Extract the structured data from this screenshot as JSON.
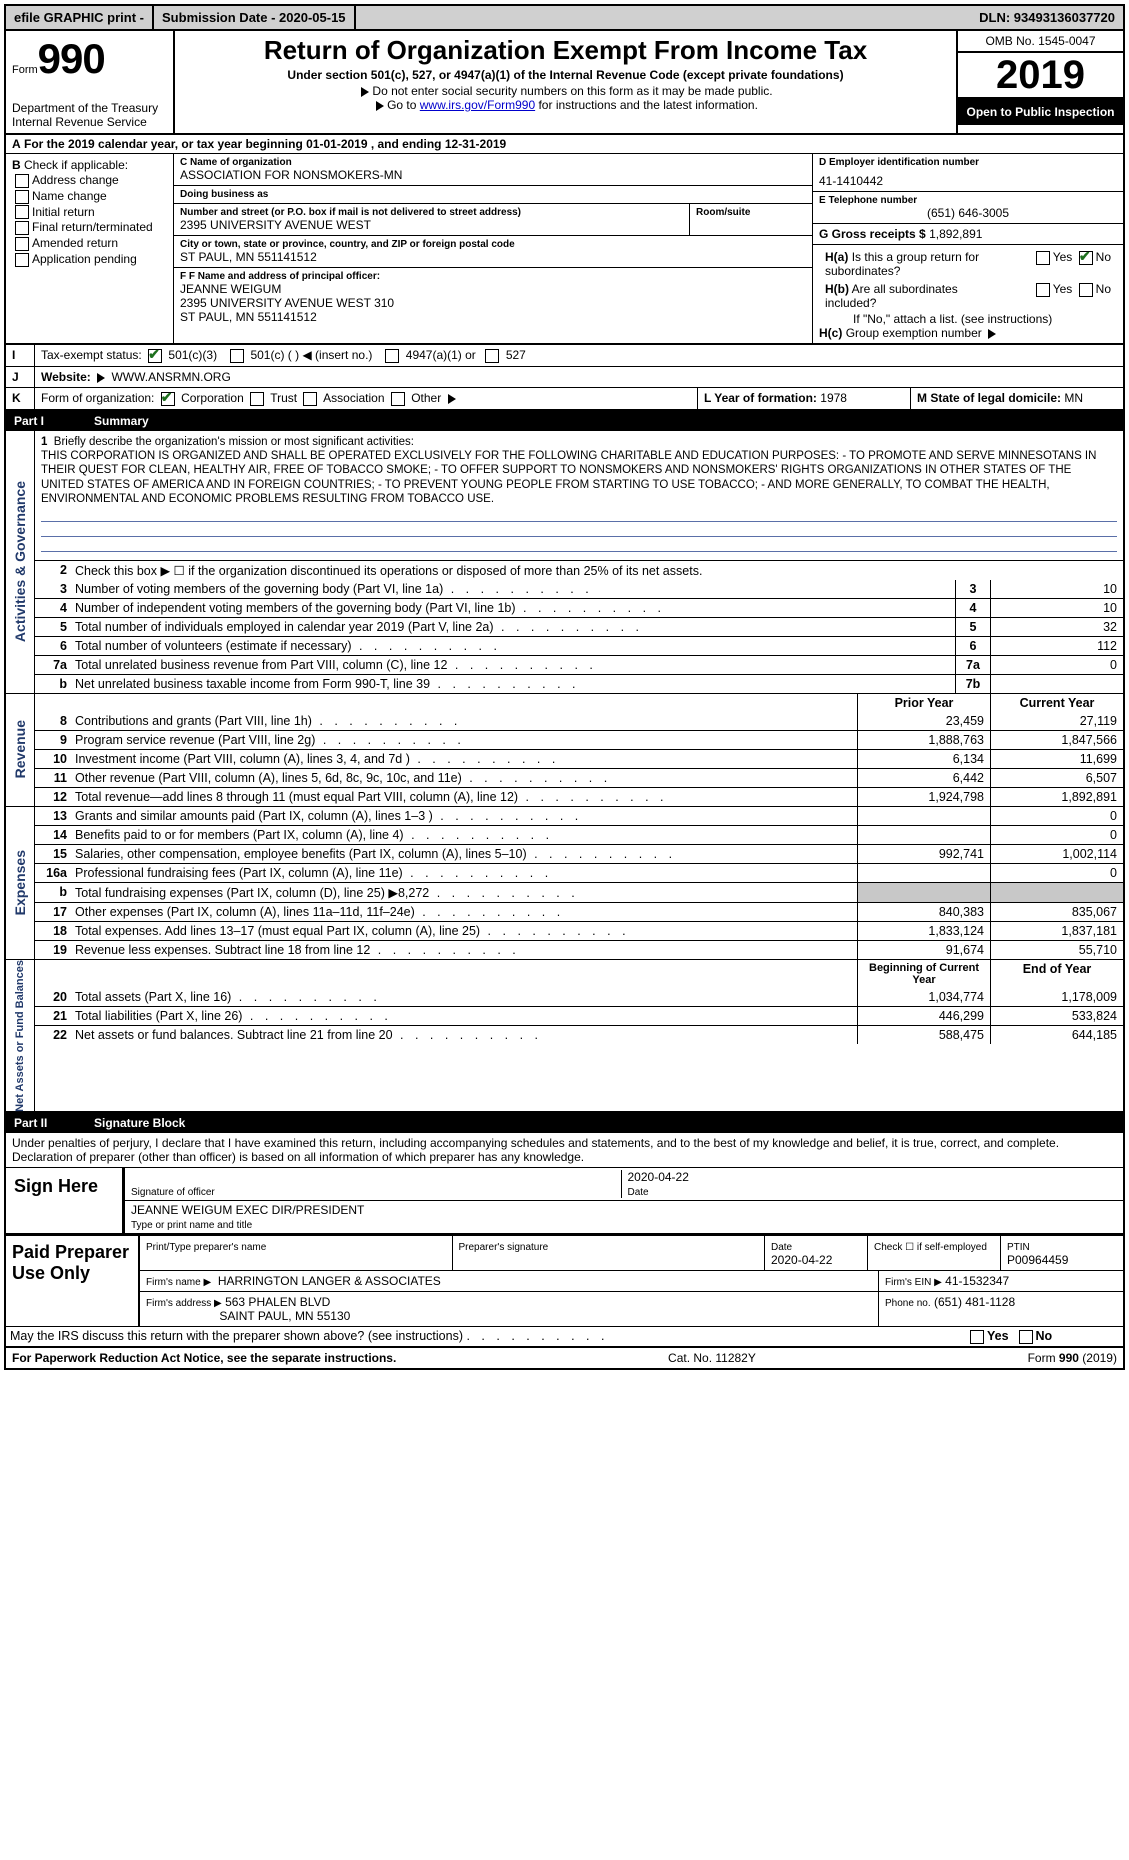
{
  "topbar": {
    "efile": "efile GRAPHIC print -",
    "submission": "Submission Date - 2020-05-15",
    "dln": "DLN: 93493136037720"
  },
  "header": {
    "form_word": "Form",
    "form_num": "990",
    "dept": "Department of the Treasury",
    "irs": "Internal Revenue Service",
    "title": "Return of Organization Exempt From Income Tax",
    "sub": "Under section 501(c), 527, or 4947(a)(1) of the Internal Revenue Code (except private foundations)",
    "note1": "Do not enter social security numbers on this form as it may be made public.",
    "note2_pre": "Go to ",
    "note2_url": "www.irs.gov/Form990",
    "note2_post": " for instructions and the latest information.",
    "omb": "OMB No. 1545-0047",
    "year": "2019",
    "inspect": "Open to Public Inspection"
  },
  "row_a": "For the 2019 calendar year, or tax year beginning 01-01-2019    , and ending 12-31-2019",
  "col_b": {
    "hdr": "Check if applicable:",
    "addr": "Address change",
    "name": "Name change",
    "init": "Initial return",
    "final": "Final return/terminated",
    "amend": "Amended return",
    "app": "Application pending"
  },
  "col_c": {
    "name_lbl": "C Name of organization",
    "name": "ASSOCIATION FOR NONSMOKERS-MN",
    "dba_lbl": "Doing business as",
    "dba": "",
    "street_lbl": "Number and street (or P.O. box if mail is not delivered to street address)",
    "street": "2395 UNIVERSITY AVENUE WEST",
    "room_lbl": "Room/suite",
    "city_lbl": "City or town, state or province, country, and ZIP or foreign postal code",
    "city": "ST PAUL, MN  551141512"
  },
  "col_d": {
    "ein_lbl": "D Employer identification number",
    "ein": "41-1410442",
    "tel_lbl": "E Telephone number",
    "tel": "(651) 646-3005",
    "gross_lbl": "G Gross receipts $",
    "gross": "1,892,891"
  },
  "col_f": {
    "lbl": "F Name and address of principal officer:",
    "name": "JEANNE WEIGUM",
    "addr1": "2395 UNIVERSITY AVENUE WEST 310",
    "addr2": "ST PAUL, MN   551141512"
  },
  "col_h": {
    "a": "Is this a group return for subordinates?",
    "b": "Are all subordinates included?",
    "b_note": "If \"No,\" attach a list. (see instructions)",
    "c": "Group exemption number",
    "yes": "Yes",
    "no": "No"
  },
  "line_i": {
    "lbl": "Tax-exempt status:",
    "o1": "501(c)(3)",
    "o2": "501(c) (   )",
    "o2_ins": "(insert no.)",
    "o3": "4947(a)(1) or",
    "o4": "527"
  },
  "line_j": {
    "lbl": "Website:",
    "val": "WWW.ANSRMN.ORG"
  },
  "line_k": {
    "lbl": "Form of organization:",
    "corp": "Corporation",
    "trust": "Trust",
    "assoc": "Association",
    "other": "Other",
    "l_lbl": "L Year of formation:",
    "l_val": "1978",
    "m_lbl": "M State of legal domicile:",
    "m_val": "MN"
  },
  "part1": {
    "num": "Part I",
    "title": "Summary"
  },
  "mission": {
    "lbl": "Briefly describe the organization's mission or most significant activities:",
    "txt": "THIS CORPORATION IS ORGANIZED AND SHALL BE OPERATED EXCLUSIVELY FOR THE FOLLOWING CHARITABLE AND EDUCATION PURPOSES: - TO PROMOTE AND SERVE MINNESOTANS IN THEIR QUEST FOR CLEAN, HEALTHY AIR, FREE OF TOBACCO SMOKE; - TO OFFER SUPPORT TO NONSMOKERS AND NONSMOKERS' RIGHTS ORGANIZATIONS IN OTHER STATES OF THE UNITED STATES OF AMERICA AND IN FOREIGN COUNTRIES; - TO PREVENT YOUNG PEOPLE FROM STARTING TO USE TOBACCO; - AND MORE GENERALLY, TO COMBAT THE HEALTH, ENVIRONMENTAL AND ECONOMIC PROBLEMS RESULTING FROM TOBACCO USE."
  },
  "gov": {
    "side": "Activities & Governance",
    "l2": "Check this box ▶ ☐  if the organization discontinued its operations or disposed of more than 25% of its net assets.",
    "rows": [
      {
        "n": "3",
        "t": "Number of voting members of the governing body (Part VI, line 1a)",
        "i": "3",
        "v": "10"
      },
      {
        "n": "4",
        "t": "Number of independent voting members of the governing body (Part VI, line 1b)",
        "i": "4",
        "v": "10"
      },
      {
        "n": "5",
        "t": "Total number of individuals employed in calendar year 2019 (Part V, line 2a)",
        "i": "5",
        "v": "32"
      },
      {
        "n": "6",
        "t": "Total number of volunteers (estimate if necessary)",
        "i": "6",
        "v": "112"
      },
      {
        "n": "7a",
        "t": "Total unrelated business revenue from Part VIII, column (C), line 12",
        "i": "7a",
        "v": "0"
      },
      {
        "n": "b",
        "t": "Net unrelated business taxable income from Form 990-T, line 39",
        "i": "7b",
        "v": ""
      }
    ]
  },
  "rev": {
    "side": "Revenue",
    "hdr1": "Prior Year",
    "hdr2": "Current Year",
    "rows": [
      {
        "n": "8",
        "t": "Contributions and grants (Part VIII, line 1h)",
        "p": "23,459",
        "c": "27,119"
      },
      {
        "n": "9",
        "t": "Program service revenue (Part VIII, line 2g)",
        "p": "1,888,763",
        "c": "1,847,566"
      },
      {
        "n": "10",
        "t": "Investment income (Part VIII, column (A), lines 3, 4, and 7d )",
        "p": "6,134",
        "c": "11,699"
      },
      {
        "n": "11",
        "t": "Other revenue (Part VIII, column (A), lines 5, 6d, 8c, 9c, 10c, and 11e)",
        "p": "6,442",
        "c": "6,507"
      },
      {
        "n": "12",
        "t": "Total revenue—add lines 8 through 11 (must equal Part VIII, column (A), line 12)",
        "p": "1,924,798",
        "c": "1,892,891"
      }
    ]
  },
  "exp": {
    "side": "Expenses",
    "rows": [
      {
        "n": "13",
        "t": "Grants and similar amounts paid (Part IX, column (A), lines 1–3 )",
        "p": "",
        "c": "0"
      },
      {
        "n": "14",
        "t": "Benefits paid to or for members (Part IX, column (A), line 4)",
        "p": "",
        "c": "0"
      },
      {
        "n": "15",
        "t": "Salaries, other compensation, employee benefits (Part IX, column (A), lines 5–10)",
        "p": "992,741",
        "c": "1,002,114"
      },
      {
        "n": "16a",
        "t": "Professional fundraising fees (Part IX, column (A), line 11e)",
        "p": "",
        "c": "0"
      },
      {
        "n": "b",
        "t": "Total fundraising expenses (Part IX, column (D), line 25) ▶8,272",
        "p": "shade",
        "c": "shade"
      },
      {
        "n": "17",
        "t": "Other expenses (Part IX, column (A), lines 11a–11d, 11f–24e)",
        "p": "840,383",
        "c": "835,067"
      },
      {
        "n": "18",
        "t": "Total expenses. Add lines 13–17 (must equal Part IX, column (A), line 25)",
        "p": "1,833,124",
        "c": "1,837,181"
      },
      {
        "n": "19",
        "t": "Revenue less expenses. Subtract line 18 from line 12",
        "p": "91,674",
        "c": "55,710"
      }
    ]
  },
  "net": {
    "side": "Net Assets or Fund Balances",
    "hdr1": "Beginning of Current Year",
    "hdr2": "End of Year",
    "rows": [
      {
        "n": "20",
        "t": "Total assets (Part X, line 16)",
        "p": "1,034,774",
        "c": "1,178,009"
      },
      {
        "n": "21",
        "t": "Total liabilities (Part X, line 26)",
        "p": "446,299",
        "c": "533,824"
      },
      {
        "n": "22",
        "t": "Net assets or fund balances. Subtract line 21 from line 20",
        "p": "588,475",
        "c": "644,185"
      }
    ]
  },
  "part2": {
    "num": "Part II",
    "title": "Signature Block"
  },
  "perjury": "Under penalties of perjury, I declare that I have examined this return, including accompanying schedules and statements, and to the best of my knowledge and belief, it is true, correct, and complete. Declaration of preparer (other than officer) is based on all information of which preparer has any knowledge.",
  "sign": {
    "label": "Sign Here",
    "sig_lbl": "Signature of officer",
    "date": "2020-04-22",
    "date_lbl": "Date",
    "name": "JEANNE WEIGUM  EXEC DIR/PRESIDENT",
    "name_lbl": "Type or print name and title"
  },
  "prep": {
    "label": "Paid Preparer Use Only",
    "h1": "Print/Type preparer's name",
    "h2": "Preparer's signature",
    "h3": "Date",
    "h3v": "2020-04-22",
    "h4": "Check ☐ if self-employed",
    "h5": "PTIN",
    "h5v": "P00964459",
    "firm_lbl": "Firm's name   ▶",
    "firm": "HARRINGTON LANGER & ASSOCIATES",
    "ein_lbl": "Firm's EIN ▶",
    "ein": "41-1532347",
    "addr_lbl": "Firm's address ▶",
    "addr1": "563 PHALEN BLVD",
    "addr2": "SAINT PAUL, MN  55130",
    "phone_lbl": "Phone no.",
    "phone": "(651) 481-1128"
  },
  "discuss": "May the IRS discuss this return with the preparer shown above? (see instructions)",
  "footer": {
    "l": "For Paperwork Reduction Act Notice, see the separate instructions.",
    "m": "Cat. No. 11282Y",
    "r": "Form 990 (2019)"
  }
}
